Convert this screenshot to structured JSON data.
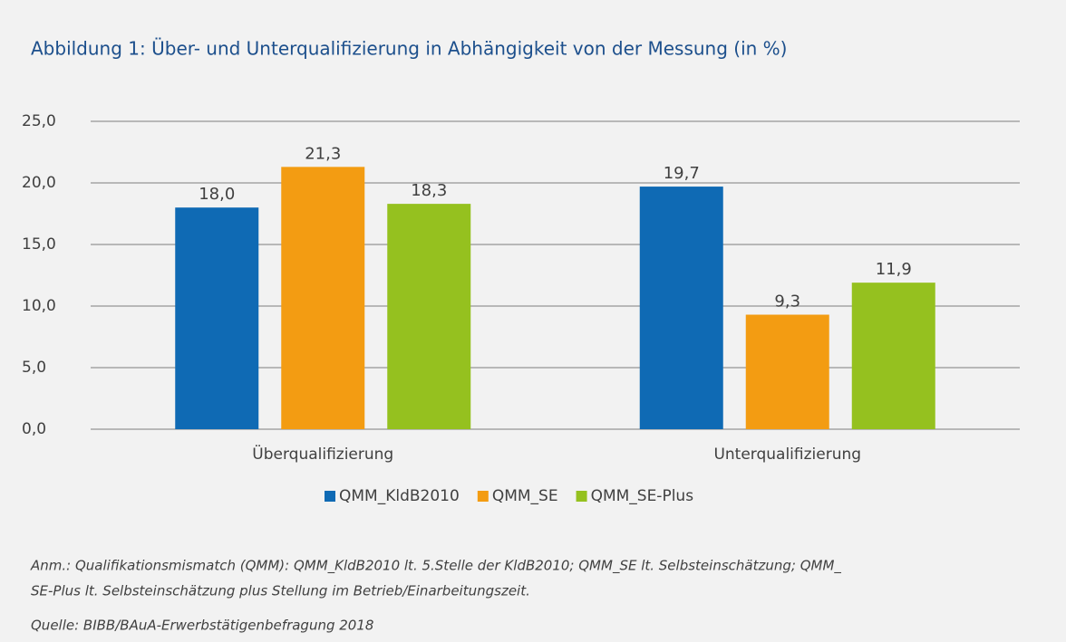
{
  "chart_data": {
    "type": "bar",
    "title": "Abbildung 1: Über- und Unterqualifizierung in Abhängigkeit von der Messung (in %)",
    "categories": [
      "Überqualifizierung",
      "Unterqualifizierung"
    ],
    "series": [
      {
        "name": "QMM_KldB2010",
        "color": "#0f6ab4",
        "values": [
          18.0,
          19.7
        ],
        "value_labels": [
          "18,0",
          "19,7"
        ]
      },
      {
        "name": "QMM_SE",
        "color": "#f39c12",
        "values": [
          21.3,
          9.3
        ],
        "value_labels": [
          "21,3",
          "9,3"
        ]
      },
      {
        "name": "QMM_SE-Plus",
        "color": "#95c11f",
        "values": [
          18.3,
          11.9
        ],
        "value_labels": [
          "18,3",
          "11,9"
        ]
      }
    ],
    "ylim": [
      0,
      25
    ],
    "yticks": [
      {
        "value": 0,
        "label": "0,0"
      },
      {
        "value": 5,
        "label": "5,0"
      },
      {
        "value": 10,
        "label": "10,0"
      },
      {
        "value": 15,
        "label": "15,0"
      },
      {
        "value": 20,
        "label": "20,0"
      },
      {
        "value": 25,
        "label": "25,0"
      }
    ],
    "grid": true,
    "legend": "bottom",
    "annotations": [
      "Anm.: Qualifikationsmismatch (QMM): QMM_KldB2010 lt. 5.Stelle der KldB2010; QMM_SE lt. Selbsteinschätzung; QMM_",
      "SE-Plus lt. Selbsteinschätzung plus Stellung im Betrieb/Einarbeitungszeit.",
      "Quelle: BIBB/BAuA-Erwerbstätigenbefragung 2018"
    ]
  }
}
